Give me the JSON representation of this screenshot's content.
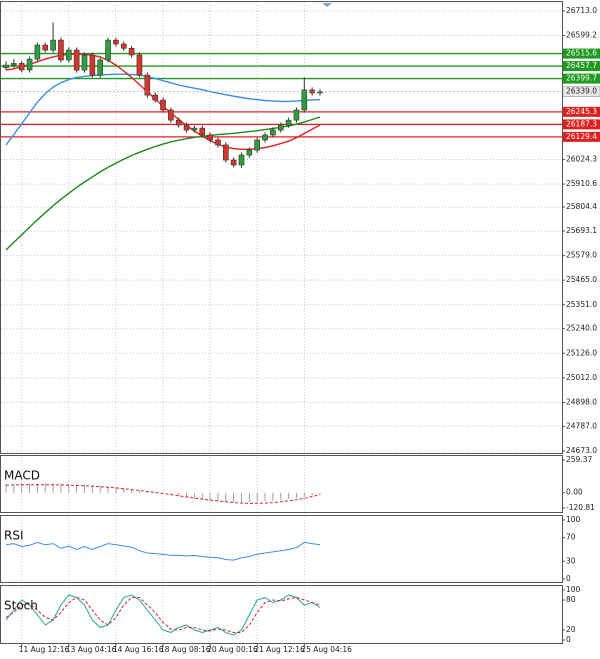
{
  "chart_data": [
    {
      "type": "candlestick",
      "categories": [
        null,
        null,
        "11 Aug 12:16",
        null,
        null,
        null,
        null,
        null,
        "13 Aug 04:16",
        null,
        null,
        null,
        null,
        null,
        "14 Aug 16:16",
        null,
        null,
        null,
        null,
        null,
        "18 Aug 08:16",
        null,
        null,
        null,
        null,
        null,
        "20 Aug 00:16",
        null,
        null,
        null,
        null,
        null,
        "21 Aug 12:16",
        null,
        null,
        null,
        null,
        null,
        "25 Aug 04:16",
        null,
        null
      ],
      "open": [
        26450,
        26462,
        26470,
        26440,
        26490,
        26555,
        26532,
        26578,
        26486,
        26532,
        26439,
        26509,
        26416,
        26486,
        26578,
        26560,
        26540,
        26509,
        26416,
        26323,
        26300,
        26254,
        26207,
        26184,
        26161,
        26170,
        26138,
        26115,
        26092,
        26022,
        25999,
        26045,
        26068,
        26115,
        26138,
        26161,
        26184,
        26207,
        26254,
        26347,
        26333
      ],
      "high": [
        26480,
        26490,
        26482,
        26502,
        26567,
        26567,
        26660,
        26590,
        26544,
        26544,
        26521,
        26521,
        26498,
        26590,
        26590,
        26572,
        26552,
        26521,
        26428,
        26335,
        26312,
        26266,
        26219,
        26196,
        26182,
        26182,
        26150,
        26127,
        26104,
        26034,
        26057,
        26080,
        26127,
        26150,
        26173,
        26196,
        26219,
        26266,
        26405,
        26359,
        26351
      ],
      "low": [
        26440,
        26450,
        26428,
        26428,
        26478,
        26520,
        26520,
        26474,
        26474,
        26427,
        26427,
        26404,
        26404,
        26474,
        26548,
        26528,
        26497,
        26404,
        26311,
        26288,
        26242,
        26195,
        26172,
        26149,
        26149,
        26126,
        26103,
        26080,
        26010,
        25987,
        25987,
        26033,
        26056,
        26103,
        26126,
        26149,
        26172,
        26195,
        26242,
        26321,
        26321
      ],
      "close": [
        26462,
        26470,
        26440,
        26490,
        26555,
        26532,
        26578,
        26486,
        26532,
        26439,
        26509,
        26416,
        26486,
        26578,
        26560,
        26540,
        26509,
        26416,
        26323,
        26300,
        26254,
        26207,
        26184,
        26161,
        26170,
        26138,
        26115,
        26092,
        26022,
        25999,
        26045,
        26068,
        26115,
        26138,
        26161,
        26184,
        26207,
        26254,
        26347,
        26333,
        26339
      ],
      "up_color": "#2e9e3e",
      "down_color": "#d9342b",
      "series": [
        {
          "color": "#3a8ee6",
          "values": [
            26092,
            26140,
            26190,
            26240,
            26290,
            26330,
            26360,
            26380,
            26395,
            26405,
            26410,
            26414,
            26416,
            26418,
            26420,
            26420,
            26418,
            26416,
            26410,
            26400,
            26390,
            26380,
            26370,
            26362,
            26355,
            26348,
            26340,
            26332,
            26325,
            26318,
            26312,
            26306,
            26302,
            26298,
            26296,
            26294,
            26294,
            26296,
            26298,
            26300,
            26302
          ]
        },
        {
          "color": "#e02020",
          "values": [
            26439,
            26445,
            26455,
            26465,
            26478,
            26490,
            26500,
            26508,
            26512,
            26514,
            26512,
            26508,
            26500,
            26485,
            26462,
            26435,
            26405,
            26372,
            26338,
            26305,
            26272,
            26240,
            26210,
            26182,
            26156,
            26133,
            26112,
            26095,
            26082,
            26075,
            26072,
            26072,
            26075,
            26080,
            26088,
            26098,
            26110,
            26125,
            26145,
            26165,
            26184
          ]
        },
        {
          "color": "#1e8a1e",
          "values": [
            25605,
            25640,
            25675,
            25710,
            25745,
            25778,
            25810,
            25840,
            25868,
            25895,
            25920,
            25944,
            25967,
            25988,
            26008,
            26026,
            26043,
            26058,
            26072,
            26085,
            26096,
            26106,
            26114,
            26121,
            26127,
            26132,
            26136,
            26140,
            26143,
            26146,
            26150,
            26154,
            26158,
            26163,
            26168,
            26174,
            26180,
            26188,
            26198,
            26210,
            26221
          ]
        }
      ],
      "levels": [
        {
          "value": 26515.6,
          "color": "#1e9a1e"
        },
        {
          "value": 26457.7,
          "color": "#1e9a1e"
        },
        {
          "value": 26399.7,
          "color": "#1e9a1e"
        },
        {
          "value": 26245.3,
          "color": "#e02020"
        },
        {
          "value": 26187.3,
          "color": "#e02020"
        },
        {
          "value": 26129.4,
          "color": "#e02020"
        }
      ],
      "last_price": {
        "value": 26339,
        "label": "26339.0"
      },
      "ylim": [
        24673,
        26713
      ],
      "yticks": [
        {
          "value": 26713,
          "label": "26713.0"
        },
        26599.2,
        26024.3,
        25910.6,
        25804.4,
        25693.1,
        {
          "value": 25579,
          "label": "25579.0"
        },
        {
          "value": 25465,
          "label": "25465.0"
        },
        {
          "value": 25351,
          "label": "25351.0"
        },
        {
          "value": 25240,
          "label": "25240.0"
        },
        {
          "value": 25126,
          "label": "25126.0"
        },
        {
          "value": 25012,
          "label": "25012.0"
        },
        {
          "value": 24898,
          "label": "24898.0"
        },
        {
          "value": 24787,
          "label": "24787.0"
        },
        {
          "value": 24673,
          "label": "24673.0"
        }
      ],
      "grid": true
    },
    {
      "type": "macd",
      "title": "MACD",
      "histogram": [
        70,
        72,
        74,
        75,
        76,
        75,
        74,
        72,
        70,
        67,
        63,
        58,
        52,
        46,
        40,
        33,
        26,
        18,
        10,
        2,
        -8,
        -18,
        -28,
        -38,
        -48,
        -55,
        -62,
        -68,
        -72,
        -75,
        -76,
        -75,
        -72,
        -68,
        -62,
        -55,
        -48,
        -40,
        -30,
        -22,
        -15
      ],
      "signal": [
        60,
        62,
        63,
        64,
        64,
        64,
        63,
        62,
        60,
        58,
        55,
        52,
        48,
        43,
        38,
        32,
        25,
        18,
        10,
        2,
        -6,
        -15,
        -24,
        -33,
        -42,
        -50,
        -58,
        -65,
        -72,
        -78,
        -82,
        -84,
        -84,
        -82,
        -78,
        -72,
        -64,
        -55,
        -44,
        -30,
        -15
      ],
      "histogram_color": "#a0a0a0",
      "signal_color": "#e02020",
      "ylim": [
        -120.81,
        259.37
      ],
      "yticks": [
        259.37,
        {
          "value": 0,
          "label": "0.00"
        },
        -120.81
      ]
    },
    {
      "type": "line",
      "title": "RSI",
      "series": [
        {
          "color": "#3a8ee6",
          "values": [
            58,
            60,
            55,
            57,
            62,
            58,
            60,
            52,
            56,
            50,
            55,
            50,
            55,
            60,
            58,
            56,
            54,
            48,
            44,
            43,
            42,
            40,
            40,
            39,
            40,
            38,
            37,
            36,
            33,
            32,
            36,
            38,
            42,
            44,
            46,
            48,
            50,
            53,
            62,
            60,
            58
          ]
        }
      ],
      "ylim": [
        0,
        100
      ],
      "yticks": [
        100,
        70,
        30,
        0
      ]
    },
    {
      "type": "line",
      "title": "Stoch",
      "series": [
        {
          "color": "#1fa3a3",
          "values": [
            40,
            60,
            80,
            70,
            50,
            30,
            40,
            70,
            90,
            85,
            70,
            40,
            25,
            30,
            60,
            85,
            90,
            80,
            60,
            40,
            20,
            15,
            25,
            30,
            20,
            15,
            20,
            25,
            15,
            10,
            20,
            50,
            80,
            85,
            75,
            80,
            90,
            85,
            70,
            75,
            65
          ]
        },
        {
          "color": "#e02020",
          "dashed": true,
          "values": [
            45,
            55,
            70,
            72,
            60,
            45,
            40,
            55,
            75,
            85,
            80,
            60,
            40,
            30,
            45,
            70,
            85,
            85,
            70,
            55,
            35,
            22,
            20,
            25,
            25,
            20,
            18,
            22,
            20,
            15,
            15,
            30,
            55,
            75,
            80,
            78,
            82,
            85,
            80,
            75,
            70
          ]
        }
      ],
      "ylim": [
        0,
        100
      ],
      "yticks": [
        100,
        80,
        20,
        0
      ]
    }
  ]
}
